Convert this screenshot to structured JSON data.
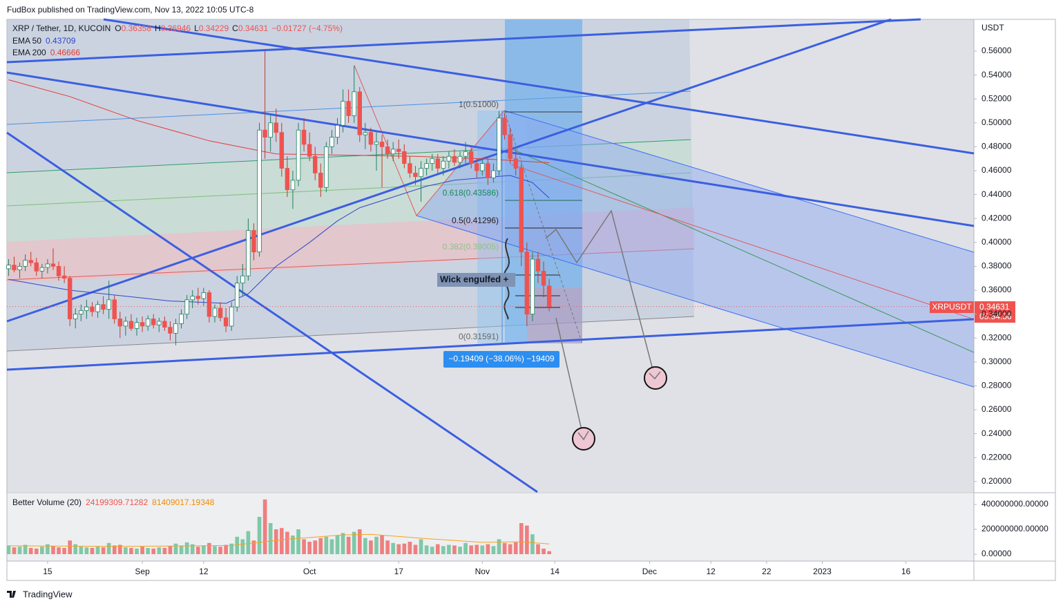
{
  "header": {
    "publisher": "FudBox published on TradingView.com, Nov 13, 2022 10:05 UTC-8",
    "footer": "TradingView"
  },
  "chart_data": {
    "type": "candlestick",
    "title": "XRP / Tether, 1D, KUCOIN",
    "symbol": "XRPUSDT",
    "currency": "USDT",
    "ohlc_labels": [
      "O",
      "H",
      "L",
      "C"
    ],
    "change": "−0.01727 (−4.75%)",
    "countdown": "05:54:56",
    "up_color": "#26a69a",
    "down_color": "#ef5350",
    "ohlc": [
      [
        0.378,
        0.386,
        0.372,
        0.381
      ],
      [
        0.381,
        0.388,
        0.375,
        0.377
      ],
      [
        0.377,
        0.383,
        0.37,
        0.38
      ],
      [
        0.38,
        0.39,
        0.376,
        0.385
      ],
      [
        0.385,
        0.392,
        0.38,
        0.383
      ],
      [
        0.383,
        0.387,
        0.372,
        0.376
      ],
      [
        0.376,
        0.382,
        0.37,
        0.379
      ],
      [
        0.379,
        0.386,
        0.374,
        0.382
      ],
      [
        0.382,
        0.395,
        0.377,
        0.38
      ],
      [
        0.38,
        0.384,
        0.368,
        0.372
      ],
      [
        0.372,
        0.38,
        0.366,
        0.37
      ],
      [
        0.37,
        0.372,
        0.33,
        0.336
      ],
      [
        0.336,
        0.345,
        0.328,
        0.34
      ],
      [
        0.34,
        0.348,
        0.334,
        0.343
      ],
      [
        0.343,
        0.352,
        0.336,
        0.346
      ],
      [
        0.346,
        0.35,
        0.338,
        0.342
      ],
      [
        0.342,
        0.351,
        0.337,
        0.348
      ],
      [
        0.348,
        0.355,
        0.34,
        0.344
      ],
      [
        0.344,
        0.368,
        0.336,
        0.352
      ],
      [
        0.352,
        0.356,
        0.332,
        0.336
      ],
      [
        0.336,
        0.342,
        0.32,
        0.33
      ],
      [
        0.33,
        0.338,
        0.322,
        0.334
      ],
      [
        0.334,
        0.34,
        0.326,
        0.328
      ],
      [
        0.328,
        0.337,
        0.322,
        0.333
      ],
      [
        0.333,
        0.338,
        0.325,
        0.33
      ],
      [
        0.33,
        0.339,
        0.326,
        0.336
      ],
      [
        0.336,
        0.34,
        0.328,
        0.331
      ],
      [
        0.331,
        0.337,
        0.325,
        0.334
      ],
      [
        0.334,
        0.338,
        0.326,
        0.329
      ],
      [
        0.329,
        0.334,
        0.318,
        0.324
      ],
      [
        0.324,
        0.336,
        0.314,
        0.332
      ],
      [
        0.332,
        0.344,
        0.328,
        0.34
      ],
      [
        0.34,
        0.356,
        0.336,
        0.352
      ],
      [
        0.352,
        0.36,
        0.345,
        0.355
      ],
      [
        0.355,
        0.362,
        0.348,
        0.353
      ],
      [
        0.353,
        0.362,
        0.347,
        0.358
      ],
      [
        0.358,
        0.36,
        0.333,
        0.338
      ],
      [
        0.338,
        0.348,
        0.333,
        0.345
      ],
      [
        0.345,
        0.35,
        0.334,
        0.337
      ],
      [
        0.337,
        0.345,
        0.325,
        0.33
      ],
      [
        0.33,
        0.35,
        0.326,
        0.346
      ],
      [
        0.346,
        0.372,
        0.342,
        0.366
      ],
      [
        0.366,
        0.382,
        0.355,
        0.372
      ],
      [
        0.372,
        0.42,
        0.368,
        0.41
      ],
      [
        0.41,
        0.416,
        0.385,
        0.392
      ],
      [
        0.392,
        0.5,
        0.388,
        0.494
      ],
      [
        0.494,
        0.56,
        0.47,
        0.488
      ],
      [
        0.488,
        0.506,
        0.476,
        0.5
      ],
      [
        0.5,
        0.512,
        0.484,
        0.492
      ],
      [
        0.492,
        0.5,
        0.455,
        0.462
      ],
      [
        0.462,
        0.472,
        0.438,
        0.444
      ],
      [
        0.444,
        0.46,
        0.428,
        0.452
      ],
      [
        0.452,
        0.5,
        0.447,
        0.494
      ],
      [
        0.494,
        0.504,
        0.476,
        0.482
      ],
      [
        0.482,
        0.492,
        0.468,
        0.472
      ],
      [
        0.472,
        0.48,
        0.452,
        0.458
      ],
      [
        0.458,
        0.466,
        0.438,
        0.446
      ],
      [
        0.446,
        0.484,
        0.442,
        0.48
      ],
      [
        0.48,
        0.494,
        0.474,
        0.488
      ],
      [
        0.488,
        0.504,
        0.482,
        0.498
      ],
      [
        0.498,
        0.528,
        0.492,
        0.518
      ],
      [
        0.518,
        0.528,
        0.5,
        0.506
      ],
      [
        0.506,
        0.548,
        0.5,
        0.526
      ],
      [
        0.526,
        0.53,
        0.484,
        0.49
      ],
      [
        0.49,
        0.5,
        0.478,
        0.492
      ],
      [
        0.492,
        0.496,
        0.476,
        0.482
      ],
      [
        0.482,
        0.492,
        0.46,
        0.484
      ],
      [
        0.484,
        0.49,
        0.446,
        0.48
      ],
      [
        0.48,
        0.486,
        0.47,
        0.474
      ],
      [
        0.474,
        0.484,
        0.468,
        0.478
      ],
      [
        0.478,
        0.486,
        0.47,
        0.476
      ],
      [
        0.476,
        0.482,
        0.462,
        0.466
      ],
      [
        0.466,
        0.472,
        0.454,
        0.458
      ],
      [
        0.458,
        0.464,
        0.448,
        0.455
      ],
      [
        0.455,
        0.468,
        0.434,
        0.462
      ],
      [
        0.462,
        0.47,
        0.456,
        0.466
      ],
      [
        0.466,
        0.474,
        0.46,
        0.47
      ],
      [
        0.47,
        0.474,
        0.458,
        0.462
      ],
      [
        0.462,
        0.472,
        0.456,
        0.468
      ],
      [
        0.468,
        0.476,
        0.462,
        0.472
      ],
      [
        0.472,
        0.478,
        0.464,
        0.467
      ],
      [
        0.467,
        0.476,
        0.462,
        0.472
      ],
      [
        0.472,
        0.484,
        0.466,
        0.476
      ],
      [
        0.476,
        0.48,
        0.462,
        0.466
      ],
      [
        0.466,
        0.47,
        0.454,
        0.46
      ],
      [
        0.46,
        0.47,
        0.456,
        0.466
      ],
      [
        0.466,
        0.47,
        0.448,
        0.454
      ],
      [
        0.454,
        0.466,
        0.45,
        0.46
      ],
      [
        0.46,
        0.51,
        0.456,
        0.504
      ],
      [
        0.504,
        0.508,
        0.486,
        0.49
      ],
      [
        0.49,
        0.496,
        0.466,
        0.47
      ],
      [
        0.47,
        0.478,
        0.456,
        0.462
      ],
      [
        0.462,
        0.466,
        0.38,
        0.392
      ],
      [
        0.392,
        0.4,
        0.33,
        0.34
      ],
      [
        0.34,
        0.392,
        0.334,
        0.386
      ],
      [
        0.386,
        0.392,
        0.366,
        0.376
      ],
      [
        0.376,
        0.384,
        0.354,
        0.364
      ],
      [
        0.36358,
        0.36946,
        0.34229,
        0.34631
      ]
    ],
    "xlim": [
      -0.3,
      173.2
    ],
    "xticks": [
      {
        "value": 7,
        "label": "15"
      },
      {
        "value": 24,
        "label": "Sep"
      },
      {
        "value": 35,
        "label": "12"
      },
      {
        "value": 54,
        "label": "Oct"
      },
      {
        "value": 70,
        "label": "17"
      },
      {
        "value": 85,
        "label": "Nov"
      },
      {
        "value": 98,
        "label": "14"
      },
      {
        "value": 115,
        "label": "Dec"
      },
      {
        "value": 126,
        "label": "12"
      },
      {
        "value": 136,
        "label": "22"
      },
      {
        "value": 146,
        "label": "2023"
      },
      {
        "value": 161,
        "label": "16"
      }
    ],
    "ylim": [
      0.1912,
      0.5866
    ],
    "yticks": [
      {
        "value": 0.2,
        "label": "0.20000"
      },
      {
        "value": 0.22,
        "label": "0.22000"
      },
      {
        "value": 0.24,
        "label": "0.24000"
      },
      {
        "value": 0.26,
        "label": "0.26000"
      },
      {
        "value": 0.28,
        "label": "0.28000"
      },
      {
        "value": 0.3,
        "label": "0.30000"
      },
      {
        "value": 0.32,
        "label": "0.32000"
      },
      {
        "value": 0.34,
        "label": "0.34000"
      },
      {
        "value": 0.36,
        "label": "0.36000"
      },
      {
        "value": 0.38,
        "label": "0.38000"
      },
      {
        "value": 0.4,
        "label": "0.40000"
      },
      {
        "value": 0.42,
        "label": "0.42000"
      },
      {
        "value": 0.44,
        "label": "0.44000"
      },
      {
        "value": 0.46,
        "label": "0.46000"
      },
      {
        "value": 0.48,
        "label": "0.48000"
      },
      {
        "value": 0.5,
        "label": "0.50000"
      },
      {
        "value": 0.52,
        "label": "0.52000"
      },
      {
        "value": 0.54,
        "label": "0.54000"
      },
      {
        "value": 0.56,
        "label": "0.56000"
      }
    ],
    "lines": [
      {
        "name": "EMA 50",
        "color": "#2f45c9",
        "x": [
          0,
          11,
          29,
          39,
          43,
          48,
          54,
          59,
          63,
          69,
          75,
          80,
          90,
          94,
          97
        ],
        "values": [
          0.369,
          0.36,
          0.351,
          0.349,
          0.357,
          0.38,
          0.4,
          0.418,
          0.429,
          0.438,
          0.447,
          0.452,
          0.456,
          0.45,
          0.43709
        ]
      },
      {
        "name": "EMA 200",
        "color": "#e53935",
        "x": [
          0,
          11,
          23,
          36,
          48,
          60,
          73,
          85,
          97
        ],
        "values": [
          0.536,
          0.522,
          0.502,
          0.485,
          0.474,
          0.473,
          0.472,
          0.47,
          0.46666
        ]
      }
    ],
    "annotations": {
      "wick": "Wick engulfed +",
      "measure": "−0.19409 (−38.06%) −19409",
      "fib": [
        "1(0.51000)",
        "0.618(0.43586)",
        "0.5(0.41296)",
        "0.382(0.39005)",
        "0(0.31591)"
      ]
    },
    "volume": {
      "title": "Better Volume (20)",
      "values": [
        70000000,
        55000000,
        60000000,
        75000000,
        50000000,
        45000000,
        60000000,
        80000000,
        65000000,
        55000000,
        50000000,
        110000000,
        80000000,
        60000000,
        55000000,
        50000000,
        60000000,
        55000000,
        90000000,
        70000000,
        75000000,
        55000000,
        50000000,
        45000000,
        60000000,
        50000000,
        45000000,
        55000000,
        50000000,
        65000000,
        85000000,
        70000000,
        95000000,
        80000000,
        60000000,
        70000000,
        90000000,
        65000000,
        60000000,
        75000000,
        85000000,
        140000000,
        120000000,
        185000000,
        110000000,
        300000000,
        440000000,
        250000000,
        200000000,
        210000000,
        180000000,
        150000000,
        200000000,
        120000000,
        100000000,
        110000000,
        130000000,
        140000000,
        120000000,
        150000000,
        170000000,
        140000000,
        180000000,
        200000000,
        130000000,
        110000000,
        140000000,
        150000000,
        110000000,
        90000000,
        80000000,
        85000000,
        100000000,
        75000000,
        120000000,
        70000000,
        60000000,
        80000000,
        65000000,
        75000000,
        70000000,
        60000000,
        90000000,
        70000000,
        75000000,
        70000000,
        80000000,
        65000000,
        120000000,
        90000000,
        80000000,
        95000000,
        250000000,
        230000000,
        160000000,
        80000000,
        45000000,
        24199309.71282
      ],
      "average": {
        "color": "#f7a21b",
        "x": [
          0,
          20,
          40,
          50,
          60,
          65,
          75,
          85,
          92,
          97
        ],
        "values": [
          67000000,
          62000000,
          70000000,
          120000000,
          155000000,
          160000000,
          125000000,
          95000000,
          100000000,
          81409017.19348
        ]
      },
      "ylim": [
        -55600000,
        489000000
      ],
      "yticks": [
        {
          "value": 0,
          "label": "0.00000"
        },
        {
          "value": 200000000,
          "label": "200000000.00000"
        },
        {
          "value": 400000000,
          "label": "400000000.00000"
        }
      ]
    }
  }
}
